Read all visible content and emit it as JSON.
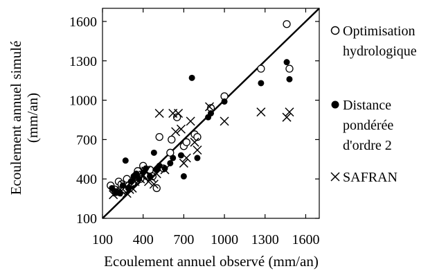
{
  "chart_data": {
    "type": "scatter",
    "xlabel": "Ecoulement annuel observé (mm/an)",
    "ylabel_line1": "Ecoulement annuel simulé",
    "ylabel_line2": "(mm/an)",
    "xlim": [
      100,
      1700
    ],
    "ylim": [
      100,
      1700
    ],
    "xticks": [
      100,
      400,
      700,
      1000,
      1300,
      1600
    ],
    "yticks": [
      100,
      400,
      700,
      1000,
      1300,
      1600
    ],
    "xtick_labels": [
      "100",
      "400",
      "700",
      "1000",
      "1300",
      "1600"
    ],
    "ytick_labels": [
      "100",
      "400",
      "700",
      "1000",
      "1300",
      "1600"
    ],
    "grid": false,
    "legend_position": "right",
    "reference_line": "1:1",
    "series": [
      {
        "name": "Optimisation hydrologique",
        "marker": "open-circle",
        "points": [
          [
            160,
            350
          ],
          [
            190,
            320
          ],
          [
            200,
            300
          ],
          [
            220,
            380
          ],
          [
            240,
            360
          ],
          [
            260,
            320
          ],
          [
            280,
            400
          ],
          [
            300,
            330
          ],
          [
            320,
            370
          ],
          [
            340,
            420
          ],
          [
            360,
            460
          ],
          [
            380,
            400
          ],
          [
            400,
            500
          ],
          [
            410,
            460
          ],
          [
            430,
            420
          ],
          [
            450,
            470
          ],
          [
            470,
            420
          ],
          [
            500,
            330
          ],
          [
            520,
            720
          ],
          [
            550,
            480
          ],
          [
            600,
            600
          ],
          [
            610,
            700
          ],
          [
            650,
            870
          ],
          [
            700,
            650
          ],
          [
            720,
            680
          ],
          [
            780,
            740
          ],
          [
            800,
            720
          ],
          [
            900,
            940
          ],
          [
            1000,
            1030
          ],
          [
            1270,
            1240
          ],
          [
            1460,
            1580
          ],
          [
            1480,
            1240
          ]
        ]
      },
      {
        "name": "Distance pondérée d'ordre 2",
        "marker": "filled-circle",
        "points": [
          [
            170,
            330
          ],
          [
            200,
            300
          ],
          [
            230,
            290
          ],
          [
            250,
            350
          ],
          [
            270,
            540
          ],
          [
            290,
            330
          ],
          [
            310,
            380
          ],
          [
            330,
            420
          ],
          [
            350,
            440
          ],
          [
            370,
            400
          ],
          [
            400,
            450
          ],
          [
            420,
            480
          ],
          [
            450,
            420
          ],
          [
            480,
            600
          ],
          [
            500,
            470
          ],
          [
            520,
            500
          ],
          [
            560,
            480
          ],
          [
            600,
            520
          ],
          [
            620,
            560
          ],
          [
            680,
            580
          ],
          [
            700,
            420
          ],
          [
            760,
            1170
          ],
          [
            800,
            560
          ],
          [
            880,
            870
          ],
          [
            900,
            900
          ],
          [
            1000,
            990
          ],
          [
            1270,
            1130
          ],
          [
            1460,
            1290
          ],
          [
            1480,
            1160
          ]
        ]
      },
      {
        "name": "SAFRAN",
        "marker": "cross",
        "points": [
          [
            180,
            280
          ],
          [
            210,
            300
          ],
          [
            240,
            310
          ],
          [
            260,
            350
          ],
          [
            280,
            290
          ],
          [
            300,
            320
          ],
          [
            320,
            330
          ],
          [
            340,
            380
          ],
          [
            360,
            420
          ],
          [
            380,
            400
          ],
          [
            400,
            430
          ],
          [
            420,
            460
          ],
          [
            440,
            380
          ],
          [
            460,
            410
          ],
          [
            480,
            360
          ],
          [
            500,
            440
          ],
          [
            520,
            900
          ],
          [
            560,
            470
          ],
          [
            620,
            900
          ],
          [
            640,
            760
          ],
          [
            660,
            900
          ],
          [
            680,
            780
          ],
          [
            700,
            520
          ],
          [
            720,
            560
          ],
          [
            750,
            840
          ],
          [
            780,
            680
          ],
          [
            800,
            620
          ],
          [
            890,
            950
          ],
          [
            1000,
            840
          ],
          [
            1270,
            910
          ],
          [
            1460,
            870
          ],
          [
            1480,
            910
          ]
        ]
      }
    ]
  },
  "legend": {
    "optim_line1": "Optimisation",
    "optim_line2": "hydrologique",
    "dist_line1": "Distance",
    "dist_line2": "pondérée",
    "dist_line3": "d'ordre 2",
    "safran": "SAFRAN"
  }
}
